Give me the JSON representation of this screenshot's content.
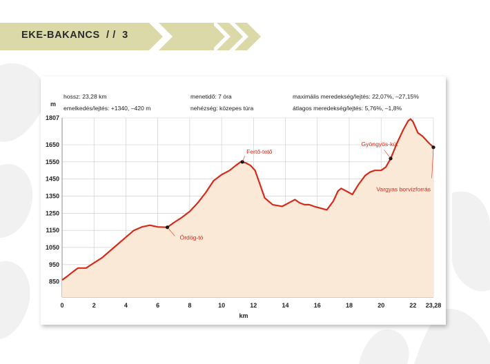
{
  "header": {
    "title": "EKE-BAKANCS  / /  3"
  },
  "info": {
    "length": "hossz: 23,28 km",
    "elevation_change": "emelkedés/lejtés: +1340, –420 m",
    "walk_time": "menetidő: 7 óra",
    "difficulty": "nehézség: közepes túra",
    "max_grade": "maximális meredekség/lejtés: 22,07%, –27,15%",
    "avg_grade": "átlagos meredekség/lejtés: 5,76%, –1,8%"
  },
  "colors": {
    "banner": "#dcd9a8",
    "line": "#d42a1a",
    "fill": "#fbe9d8",
    "grid": "#c8c8c8"
  },
  "chart_data": {
    "type": "area",
    "title": "",
    "xlabel": "km",
    "ylabel": "m",
    "xlim": [
      0,
      23.28
    ],
    "ylim": [
      760,
      1807
    ],
    "x_ticks": [
      0,
      2,
      4,
      6,
      8,
      10,
      12,
      14,
      16,
      18,
      20,
      22,
      23.28
    ],
    "x_tick_labels": [
      "0",
      "2",
      "4",
      "6",
      "8",
      "10",
      "12",
      "14",
      "16",
      "18",
      "20",
      "22",
      "23,28"
    ],
    "y_ticks": [
      850,
      950,
      1050,
      1150,
      1250,
      1350,
      1450,
      1550,
      1650,
      1807
    ],
    "y_tick_labels": [
      "850",
      "950",
      "1050",
      "1150",
      "1250",
      "1350",
      "1450",
      "1550",
      "1650",
      "1807"
    ],
    "grid": true,
    "x": [
      0,
      0.3,
      0.7,
      1.0,
      1.5,
      2.0,
      2.5,
      3.0,
      3.5,
      4.0,
      4.5,
      5.0,
      5.5,
      6.0,
      6.6,
      7.0,
      7.5,
      8.0,
      8.5,
      9.0,
      9.5,
      10.0,
      10.5,
      10.9,
      11.2,
      11.5,
      11.8,
      12.1,
      12.4,
      12.7,
      13.2,
      13.8,
      14.3,
      14.6,
      14.9,
      15.2,
      15.5,
      15.8,
      16.2,
      16.6,
      17.0,
      17.3,
      17.5,
      17.8,
      18.2,
      18.6,
      19.0,
      19.3,
      19.6,
      20.0,
      20.3,
      20.6,
      21.0,
      21.4,
      21.7,
      21.85,
      22.0,
      22.3,
      22.6,
      23.0,
      23.28
    ],
    "y": [
      860,
      880,
      910,
      930,
      930,
      960,
      990,
      1030,
      1070,
      1110,
      1150,
      1170,
      1180,
      1170,
      1168,
      1195,
      1225,
      1260,
      1310,
      1370,
      1440,
      1475,
      1500,
      1530,
      1550,
      1545,
      1530,
      1500,
      1420,
      1340,
      1300,
      1290,
      1315,
      1330,
      1310,
      1300,
      1300,
      1290,
      1280,
      1270,
      1320,
      1380,
      1395,
      1380,
      1360,
      1420,
      1470,
      1490,
      1500,
      1500,
      1520,
      1570,
      1660,
      1740,
      1790,
      1800,
      1785,
      1720,
      1700,
      1660,
      1635
    ],
    "markers": [
      {
        "x": 6.6,
        "y": 1168,
        "label": "Ördög-tó"
      },
      {
        "x": 11.3,
        "y": 1550,
        "label": "Fertő-tető"
      },
      {
        "x": 20.6,
        "y": 1570,
        "label": "Gyöngyös-kút"
      },
      {
        "x": 23.28,
        "y": 1635,
        "label": "Vargyas borvízforrás"
      }
    ]
  }
}
